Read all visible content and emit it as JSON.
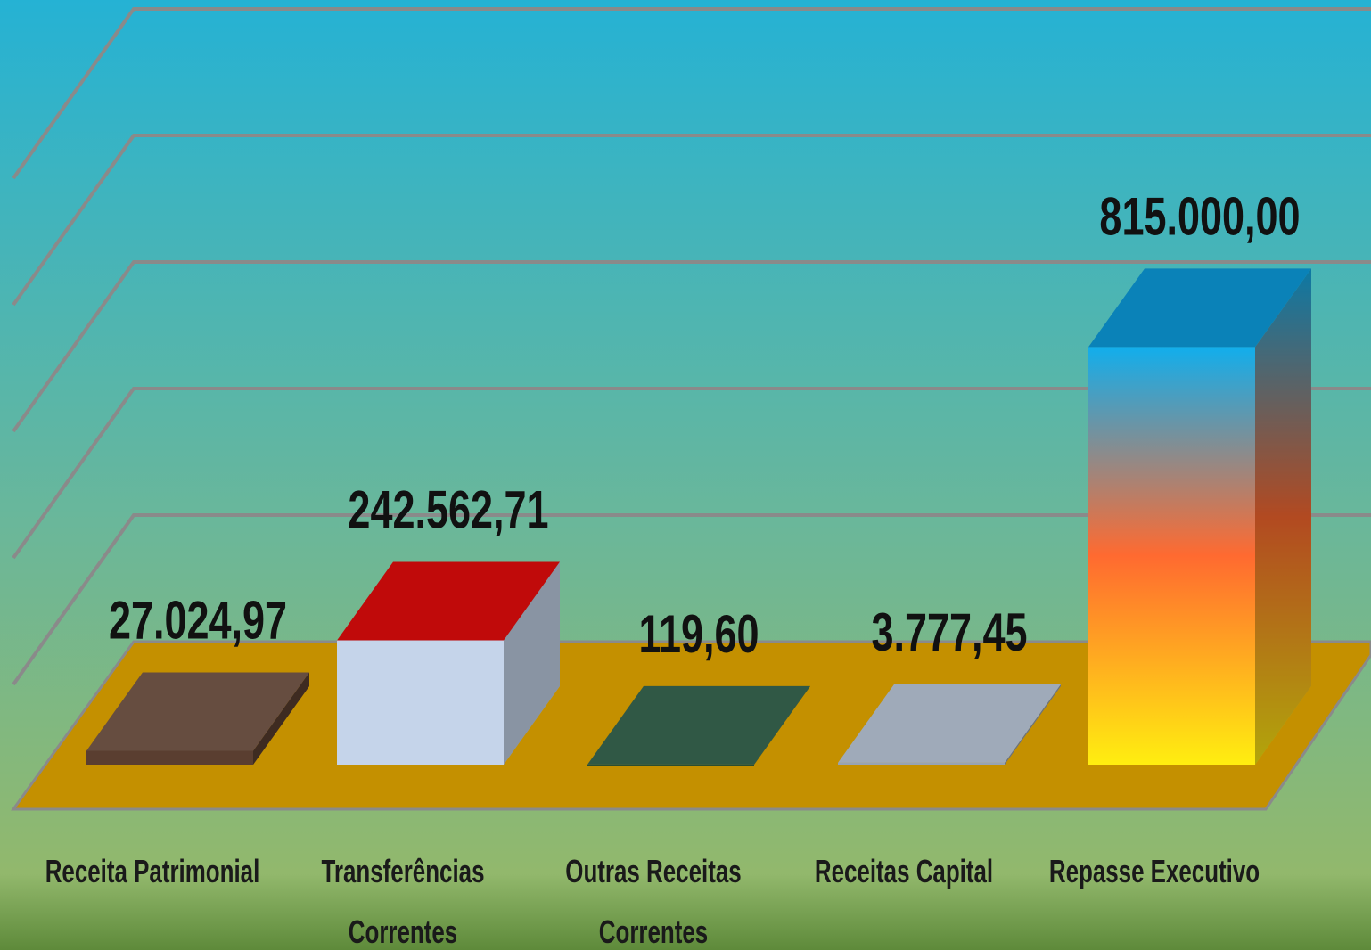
{
  "chart_data": {
    "type": "bar3d",
    "categories": [
      "Receita Patrimonial",
      "Transferências Correntes",
      "Outras Receitas Correntes",
      "Receitas Capital",
      "Repasse Executivo"
    ],
    "values": [
      27024.97,
      242562.71,
      119.6,
      3777.45,
      815000.0
    ],
    "value_labels": [
      "27.024,97",
      "242.562,71",
      "119,60",
      "3.777,45",
      "815.000,00"
    ],
    "colors": [
      "#5a3e30",
      "#c5d4ea",
      "#1f4a36",
      "#97a3b3",
      "#f7a020"
    ],
    "ylim": [
      0,
      1000000
    ],
    "yticks": [
      0,
      200000,
      400000,
      600000,
      800000,
      1000000
    ],
    "grid": true
  }
}
